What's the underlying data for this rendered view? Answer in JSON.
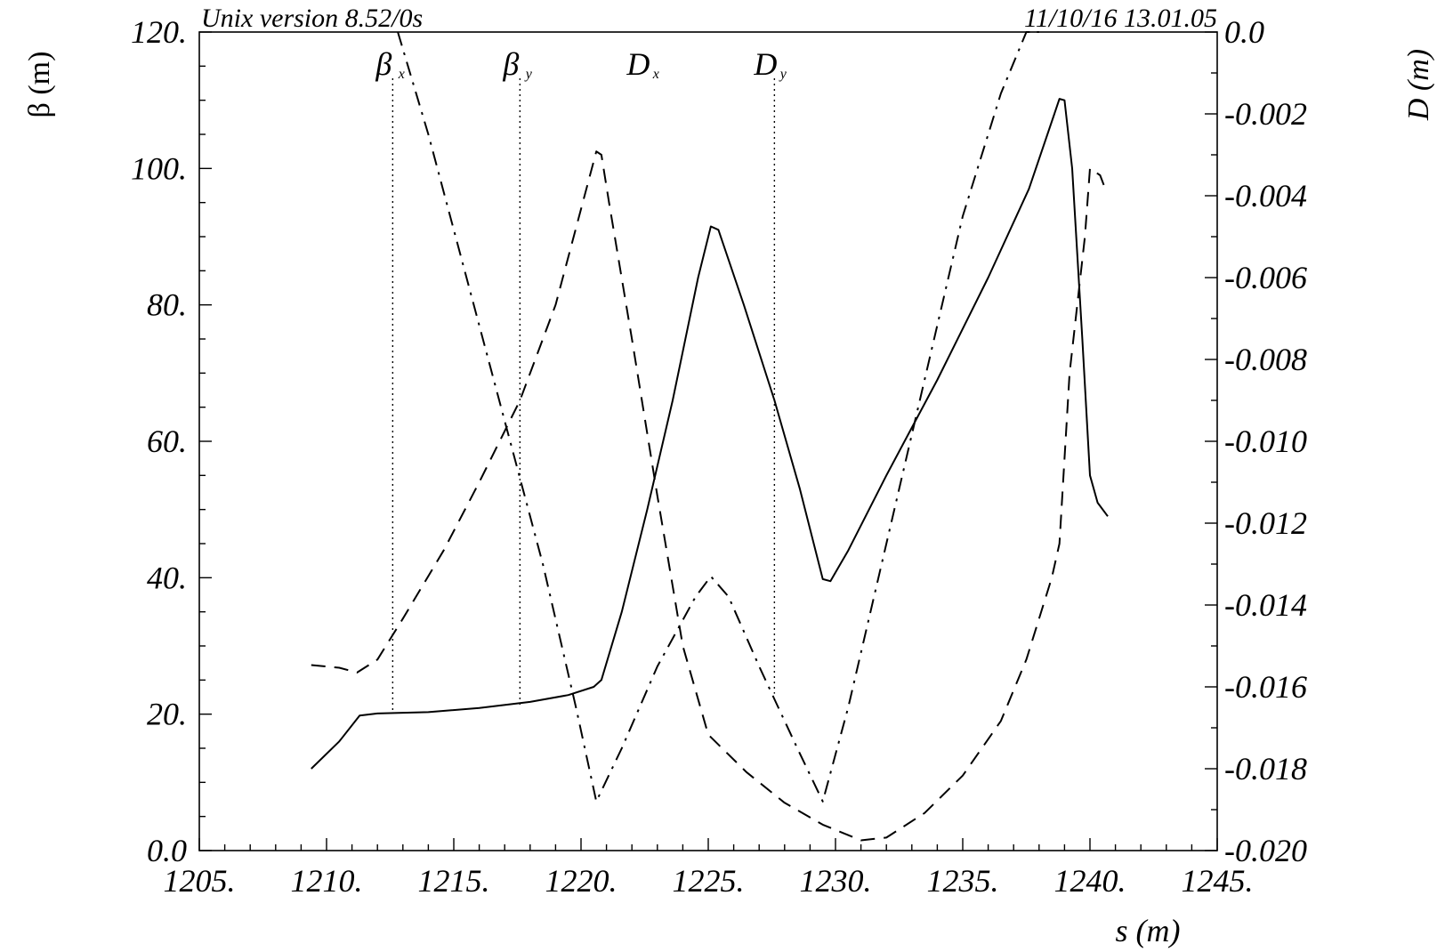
{
  "header": {
    "left": "Unix version 8.52/0s",
    "right": "11/10/16  13.01.05"
  },
  "chart_data": {
    "type": "line",
    "xlabel": "s (m)",
    "ylabel_left": "β  (m)",
    "ylabel_right": "D  (m)",
    "xlim": [
      1205,
      1245
    ],
    "ylim_left": [
      0,
      120
    ],
    "ylim_right": [
      -0.02,
      0.0
    ],
    "x_ticks": [
      "1205.",
      "1210.",
      "1215.",
      "1220.",
      "1225.",
      "1230.",
      "1235.",
      "1240.",
      "1245."
    ],
    "y_left_ticks": [
      "0.0",
      "20.",
      "40.",
      "60.",
      "80.",
      "100.",
      "120."
    ],
    "y_right_ticks": [
      "-0.020",
      "-0.018",
      "-0.016",
      "-0.014",
      "-0.012",
      "-0.010",
      "-0.008",
      "-0.006",
      "-0.004",
      "-0.002",
      "0.0"
    ],
    "legend": [
      {
        "label": "β",
        "sub": "x",
        "style": "solid",
        "s": 1212.6
      },
      {
        "label": "β",
        "sub": "y",
        "style": "dashed",
        "s": 1217.6
      },
      {
        "label": "D",
        "sub": "x",
        "style": "dash-dot",
        "s": 1222.6
      },
      {
        "label": "D",
        "sub": "y",
        "style": "dotted",
        "s": 1227.6
      }
    ],
    "series": [
      {
        "name": "βx",
        "axis": "left",
        "style": "solid",
        "points": [
          [
            1209.4,
            12.0
          ],
          [
            1210.5,
            16.0
          ],
          [
            1211.3,
            19.8
          ],
          [
            1212.0,
            20.1
          ],
          [
            1214.0,
            20.3
          ],
          [
            1216.0,
            20.9
          ],
          [
            1218.0,
            21.8
          ],
          [
            1219.5,
            22.8
          ],
          [
            1220.5,
            24.0
          ],
          [
            1220.8,
            25.0
          ],
          [
            1221.6,
            35.0
          ],
          [
            1222.6,
            50.0
          ],
          [
            1223.6,
            66.0
          ],
          [
            1224.6,
            84.0
          ],
          [
            1225.1,
            91.5
          ],
          [
            1225.4,
            91.0
          ],
          [
            1226.4,
            80.0
          ],
          [
            1227.6,
            66.0
          ],
          [
            1228.6,
            53.0
          ],
          [
            1229.5,
            39.8
          ],
          [
            1229.8,
            39.5
          ],
          [
            1230.5,
            44.0
          ],
          [
            1232.0,
            55.0
          ],
          [
            1234.0,
            69.0
          ],
          [
            1236.0,
            84.0
          ],
          [
            1237.6,
            97.0
          ],
          [
            1238.6,
            108.0
          ],
          [
            1238.8,
            110.2
          ],
          [
            1239.0,
            110.0
          ],
          [
            1239.3,
            100.0
          ],
          [
            1239.7,
            75.0
          ],
          [
            1240.0,
            55.0
          ],
          [
            1240.3,
            51.0
          ],
          [
            1240.7,
            49.0
          ]
        ]
      },
      {
        "name": "βy",
        "axis": "left",
        "style": "dashed",
        "points": [
          [
            1209.4,
            27.2
          ],
          [
            1210.5,
            26.8
          ],
          [
            1211.2,
            26.1
          ],
          [
            1212.0,
            28.0
          ],
          [
            1213.0,
            34.0
          ],
          [
            1214.6,
            44.0
          ],
          [
            1216.0,
            54.0
          ],
          [
            1217.6,
            66.0
          ],
          [
            1219.0,
            80.0
          ],
          [
            1220.6,
            102.5
          ],
          [
            1220.8,
            102.0
          ],
          [
            1221.1,
            95.0
          ],
          [
            1222.0,
            75.0
          ],
          [
            1223.0,
            52.0
          ],
          [
            1224.0,
            30.0
          ],
          [
            1225.0,
            17.0
          ],
          [
            1226.5,
            11.5
          ],
          [
            1228.0,
            7.0
          ],
          [
            1229.5,
            3.8
          ],
          [
            1231.0,
            1.5
          ],
          [
            1232.0,
            1.9
          ],
          [
            1233.5,
            5.5
          ],
          [
            1235.0,
            11.0
          ],
          [
            1236.5,
            19.0
          ],
          [
            1237.5,
            28.0
          ],
          [
            1238.5,
            40.0
          ],
          [
            1238.8,
            45.0
          ],
          [
            1239.2,
            70.0
          ],
          [
            1239.5,
            80.0
          ],
          [
            1239.8,
            90.0
          ],
          [
            1240.0,
            100.0
          ],
          [
            1240.4,
            99.0
          ],
          [
            1240.6,
            97.0
          ]
        ]
      },
      {
        "name": "Dx",
        "axis": "right",
        "style": "dash-dot",
        "points": [
          [
            1212.8,
            0.0
          ],
          [
            1214.0,
            -0.0025
          ],
          [
            1215.5,
            -0.006
          ],
          [
            1217.0,
            -0.0095
          ],
          [
            1218.5,
            -0.013
          ],
          [
            1219.8,
            -0.0165
          ],
          [
            1220.6,
            -0.0188
          ],
          [
            1221.6,
            -0.0175
          ],
          [
            1223.0,
            -0.0155
          ],
          [
            1224.5,
            -0.0138
          ],
          [
            1225.1,
            -0.0133
          ],
          [
            1225.8,
            -0.0138
          ],
          [
            1227.0,
            -0.0155
          ],
          [
            1228.5,
            -0.0175
          ],
          [
            1229.5,
            -0.0188
          ],
          [
            1230.5,
            -0.0165
          ],
          [
            1232.0,
            -0.0125
          ],
          [
            1233.5,
            -0.0085
          ],
          [
            1235.0,
            -0.0045
          ],
          [
            1236.5,
            -0.0015
          ],
          [
            1237.5,
            0.0
          ],
          [
            1238.0,
            0.0
          ]
        ]
      }
    ],
    "markers": [
      {
        "s": 1212.6,
        "top_left": 120,
        "bottom_left": 20.1
      },
      {
        "s": 1217.6,
        "top_left": 120,
        "bottom_left": 21.0
      },
      {
        "s": 1227.6,
        "top_left": 120,
        "bottom_left": 23.0
      }
    ]
  }
}
